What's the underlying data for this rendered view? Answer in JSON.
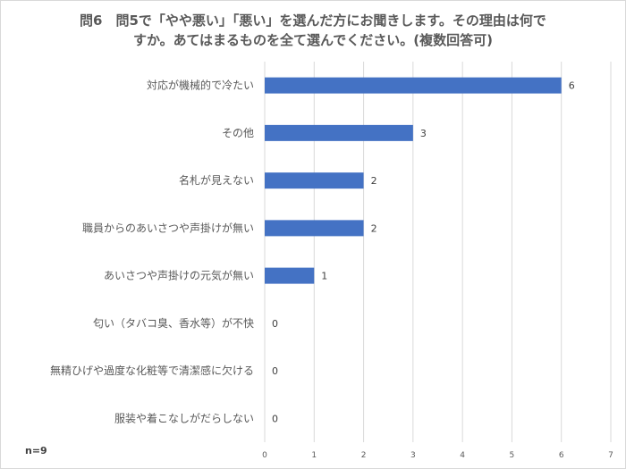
{
  "chart_data": {
    "type": "bar",
    "orientation": "horizontal",
    "title_lines": [
      "問6　問5で「やや悪い」「悪い」を選んだ方にお聞きします。その理由は何で",
      "すか。あてはまるものを全て選んでください。(複数回答可)"
    ],
    "categories": [
      "対応が機械的で冷たい",
      "その他",
      "名札が見えない",
      "職員からのあいさつや声掛けが無い",
      "あいさつや声掛けの元気が無い",
      "匂い（タバコ臭、香水等）が不快",
      "無精ひげや過度な化粧等で清潔感に欠ける",
      "服装や着こなしがだらしない"
    ],
    "values": [
      6,
      3,
      2,
      2,
      1,
      0,
      0,
      0
    ],
    "xlim": [
      0,
      7
    ],
    "xticks": [
      "0",
      "1",
      "2",
      "3",
      "4",
      "5",
      "6",
      "7"
    ],
    "grid": true,
    "bar_color": "#4472c4",
    "gridline_color": "#d9d9d9",
    "note": "n=9"
  }
}
